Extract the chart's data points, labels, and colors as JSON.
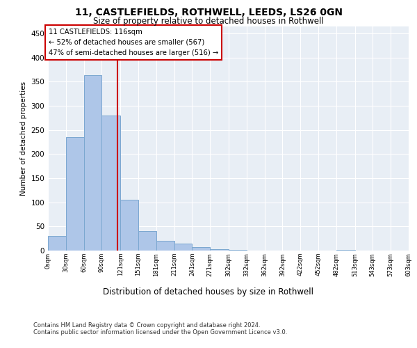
{
  "title1": "11, CASTLEFIELDS, ROTHWELL, LEEDS, LS26 0GN",
  "title2": "Size of property relative to detached houses in Rothwell",
  "xlabel": "Distribution of detached houses by size in Rothwell",
  "ylabel": "Number of detached properties",
  "bar_edges": [
    0,
    30,
    60,
    90,
    121,
    151,
    181,
    211,
    241,
    271,
    302,
    332,
    362,
    392,
    422,
    452,
    482,
    513,
    543,
    573,
    603
  ],
  "bar_heights": [
    30,
    235,
    363,
    280,
    105,
    40,
    20,
    15,
    7,
    3,
    1,
    0,
    0,
    0,
    0,
    0,
    1,
    0,
    0,
    0
  ],
  "bar_color": "#aec6e8",
  "bar_edge_color": "#7ba7d0",
  "property_size": 116,
  "vline_color": "#cc0000",
  "annotation_text": "11 CASTLEFIELDS: 116sqm\n← 52% of detached houses are smaller (567)\n47% of semi-detached houses are larger (516) →",
  "annotation_box_color": "#ffffff",
  "annotation_box_edge": "#cc0000",
  "ylim": [
    0,
    465
  ],
  "yticks": [
    0,
    50,
    100,
    150,
    200,
    250,
    300,
    350,
    400,
    450
  ],
  "bg_color": "#e8eef5",
  "footer_text": "Contains HM Land Registry data © Crown copyright and database right 2024.\nContains public sector information licensed under the Open Government Licence v3.0.",
  "tick_labels": [
    "0sqm",
    "30sqm",
    "60sqm",
    "90sqm",
    "121sqm",
    "151sqm",
    "181sqm",
    "211sqm",
    "241sqm",
    "271sqm",
    "302sqm",
    "332sqm",
    "362sqm",
    "392sqm",
    "422sqm",
    "452sqm",
    "482sqm",
    "513sqm",
    "543sqm",
    "573sqm",
    "603sqm"
  ]
}
